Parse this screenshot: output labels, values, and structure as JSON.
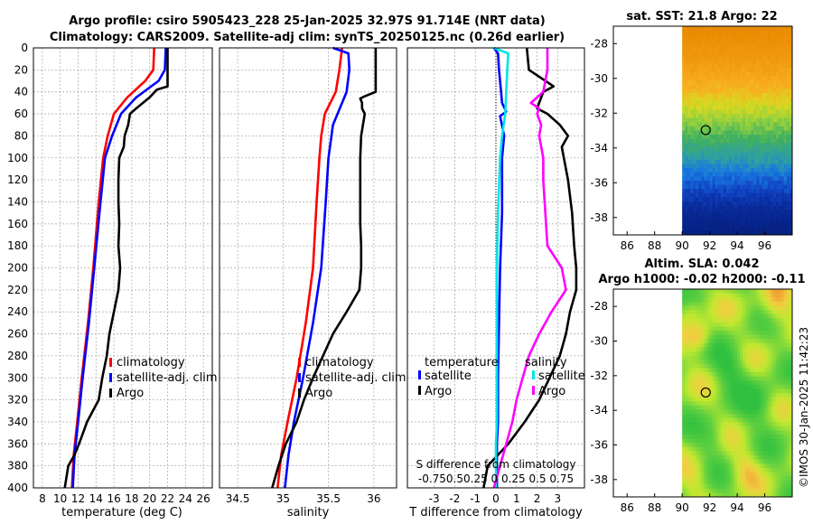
{
  "header": {
    "title_line1": "Argo profile: csiro 5905423_228 25-Jan-2025 32.97S 91.714E (NRT data)",
    "title_line2": "Climatology: CARS2009. Satellite-adj clim: synTS_20250125.nc (0.26d earlier)"
  },
  "footer": {
    "stamp": "©IMOS 30-Jan-2025 11:42:23"
  },
  "colors": {
    "red": "#ff0000",
    "blue": "#0000ff",
    "black": "#000000",
    "cyan": "#00e5e5",
    "magenta": "#ff00ff",
    "grid": "#b0b0b0"
  },
  "chart_data": [
    {
      "id": "temperature",
      "type": "line",
      "xlabel": "temperature (deg C)",
      "ylabel": "",
      "xlim": [
        7,
        27
      ],
      "ylim": [
        0,
        400
      ],
      "y_inverted": true,
      "xticks": [
        8,
        10,
        12,
        14,
        16,
        18,
        20,
        22,
        24,
        26
      ],
      "yticks": [
        0,
        20,
        40,
        60,
        80,
        100,
        120,
        140,
        160,
        180,
        200,
        220,
        240,
        260,
        280,
        300,
        320,
        340,
        360,
        380,
        400
      ],
      "legend": [
        "climatology",
        "satellite-adj. clim",
        "Argo"
      ],
      "legend_position": "lower-right",
      "series": [
        {
          "name": "climatology",
          "color": "red",
          "points": [
            [
              20.5,
              0
            ],
            [
              20.4,
              20
            ],
            [
              19.5,
              30
            ],
            [
              17.5,
              45
            ],
            [
              16,
              60
            ],
            [
              15.3,
              80
            ],
            [
              14.8,
              100
            ],
            [
              14.3,
              140
            ],
            [
              13.7,
              200
            ],
            [
              13.1,
              250
            ],
            [
              12.4,
              300
            ],
            [
              11.9,
              340
            ],
            [
              11.5,
              370
            ],
            [
              11.3,
              400
            ]
          ]
        },
        {
          "name": "satellite-adj. clim",
          "color": "blue",
          "points": [
            [
              21.8,
              0
            ],
            [
              21.7,
              20
            ],
            [
              21,
              30
            ],
            [
              18.5,
              45
            ],
            [
              16.8,
              60
            ],
            [
              15.8,
              80
            ],
            [
              15,
              100
            ],
            [
              14.5,
              140
            ],
            [
              13.8,
              200
            ],
            [
              13.2,
              250
            ],
            [
              12.5,
              300
            ],
            [
              12,
              340
            ],
            [
              11.6,
              370
            ],
            [
              11.4,
              400
            ]
          ]
        },
        {
          "name": "Argo",
          "color": "black",
          "points": [
            [
              22,
              0
            ],
            [
              22,
              35
            ],
            [
              20.8,
              38
            ],
            [
              20,
              45
            ],
            [
              18.5,
              55
            ],
            [
              17.8,
              60
            ],
            [
              17.6,
              70
            ],
            [
              17.2,
              80
            ],
            [
              17.1,
              90
            ],
            [
              16.6,
              100
            ],
            [
              16.5,
              120
            ],
            [
              16.5,
              140
            ],
            [
              16.6,
              160
            ],
            [
              16.5,
              180
            ],
            [
              16.7,
              200
            ],
            [
              16.5,
              220
            ],
            [
              16,
              240
            ],
            [
              15.5,
              260
            ],
            [
              15.2,
              280
            ],
            [
              14.7,
              300
            ],
            [
              14.3,
              320
            ],
            [
              13,
              340
            ],
            [
              12.1,
              360
            ],
            [
              11.6,
              370
            ],
            [
              10.9,
              380
            ],
            [
              10.5,
              400
            ]
          ]
        }
      ]
    },
    {
      "id": "salinity",
      "type": "line",
      "xlabel": "salinity",
      "ylabel": "",
      "xlim": [
        34.3,
        36.25
      ],
      "ylim": [
        0,
        400
      ],
      "y_inverted": true,
      "xticks": [
        34.5,
        35,
        35.5,
        36
      ],
      "xticklabels": [
        "34.5",
        "35",
        "35.5",
        "36"
      ],
      "legend": [
        "climatology",
        "satellite-adj. clim",
        "Argo"
      ],
      "legend_position": "lower-right",
      "series": [
        {
          "name": "climatology",
          "color": "red",
          "points": [
            [
              35.65,
              0
            ],
            [
              35.62,
              20
            ],
            [
              35.58,
              40
            ],
            [
              35.46,
              60
            ],
            [
              35.42,
              80
            ],
            [
              35.4,
              100
            ],
            [
              35.37,
              140
            ],
            [
              35.33,
              200
            ],
            [
              35.25,
              250
            ],
            [
              35.15,
              300
            ],
            [
              35.05,
              340
            ],
            [
              34.98,
              370
            ],
            [
              34.94,
              400
            ]
          ]
        },
        {
          "name": "satellite-adj. clim",
          "color": "blue",
          "points": [
            [
              35.55,
              0
            ],
            [
              35.72,
              5
            ],
            [
              35.73,
              20
            ],
            [
              35.7,
              40
            ],
            [
              35.65,
              50
            ],
            [
              35.55,
              70
            ],
            [
              35.5,
              100
            ],
            [
              35.47,
              140
            ],
            [
              35.42,
              200
            ],
            [
              35.33,
              250
            ],
            [
              35.22,
              300
            ],
            [
              35.12,
              340
            ],
            [
              35.06,
              370
            ],
            [
              35.02,
              400
            ]
          ]
        },
        {
          "name": "Argo",
          "color": "black",
          "points": [
            [
              36.02,
              0
            ],
            [
              36.02,
              40
            ],
            [
              35.9,
              44
            ],
            [
              35.85,
              46
            ],
            [
              35.87,
              50
            ],
            [
              35.87,
              55
            ],
            [
              35.9,
              60
            ],
            [
              35.88,
              70
            ],
            [
              35.86,
              80
            ],
            [
              35.85,
              100
            ],
            [
              35.85,
              130
            ],
            [
              35.85,
              160
            ],
            [
              35.86,
              180
            ],
            [
              35.86,
              200
            ],
            [
              35.84,
              220
            ],
            [
              35.7,
              240
            ],
            [
              35.55,
              260
            ],
            [
              35.44,
              280
            ],
            [
              35.33,
              300
            ],
            [
              35.23,
              320
            ],
            [
              35.15,
              340
            ],
            [
              35.03,
              360
            ],
            [
              34.95,
              380
            ],
            [
              34.88,
              400
            ]
          ]
        }
      ]
    },
    {
      "id": "difference",
      "type": "line",
      "xlabel": "T difference from climatology",
      "ylabel": "",
      "xlim": [
        -4.3,
        4.3
      ],
      "ylim": [
        0,
        400
      ],
      "y_inverted": true,
      "xticks": [
        -3,
        -2,
        -1,
        0,
        1,
        2,
        3
      ],
      "xticklabels": [
        "-3",
        "-2",
        "-1",
        "0",
        "1",
        "2",
        "3"
      ],
      "top_axis_label": "S difference from climatology",
      "top_ticklabels": [
        "-0.75",
        "0.5",
        "0.25",
        "0",
        "0.25",
        "0.5",
        "0.75"
      ],
      "zero_line": "dotted",
      "legend_left_title": "temperature",
      "legend_left": [
        "satellite",
        "Argo"
      ],
      "legend_right_title": "salinity",
      "legend_right": [
        "satellite",
        "Argo"
      ],
      "series": [
        {
          "name": "T satellite",
          "color": "blue",
          "points": [
            [
              -0.1,
              0
            ],
            [
              0.1,
              5
            ],
            [
              0.15,
              20
            ],
            [
              0.25,
              40
            ],
            [
              0.3,
              50
            ],
            [
              0.5,
              58
            ],
            [
              0.2,
              62
            ],
            [
              0.4,
              80
            ],
            [
              0.3,
              100
            ],
            [
              0.3,
              150
            ],
            [
              0.2,
              200
            ],
            [
              0.15,
              250
            ],
            [
              0.1,
              300
            ],
            [
              0.1,
              340
            ],
            [
              0.05,
              360
            ],
            [
              0.05,
              400
            ]
          ]
        },
        {
          "name": "T Argo",
          "color": "black",
          "points": [
            [
              1.5,
              0
            ],
            [
              1.6,
              20
            ],
            [
              2.8,
              35
            ],
            [
              2.3,
              40
            ],
            [
              2,
              55
            ],
            [
              2.5,
              60
            ],
            [
              3.1,
              70
            ],
            [
              3.5,
              80
            ],
            [
              3.2,
              90
            ],
            [
              3.5,
              120
            ],
            [
              3.7,
              150
            ],
            [
              3.8,
              180
            ],
            [
              3.9,
              200
            ],
            [
              3.9,
              220
            ],
            [
              3.6,
              240
            ],
            [
              3.4,
              260
            ],
            [
              3.1,
              280
            ],
            [
              2.6,
              300
            ],
            [
              2.1,
              320
            ],
            [
              1.4,
              340
            ],
            [
              0.6,
              360
            ],
            [
              0.1,
              370
            ],
            [
              -0.4,
              380
            ],
            [
              -0.6,
              400
            ]
          ]
        },
        {
          "name": "S satellite",
          "color": "cyan",
          "points": [
            [
              -0.1,
              0
            ],
            [
              0.6,
              5
            ],
            [
              0.55,
              20
            ],
            [
              0.5,
              40
            ],
            [
              0.45,
              60
            ],
            [
              0.3,
              80
            ],
            [
              0.2,
              100
            ],
            [
              0.1,
              150
            ],
            [
              0.05,
              200
            ],
            [
              0.05,
              250
            ],
            [
              0.05,
              300
            ],
            [
              0.05,
              340
            ],
            [
              0,
              360
            ],
            [
              0,
              400
            ]
          ]
        },
        {
          "name": "S Argo",
          "color": "magenta",
          "points": [
            [
              2.5,
              0
            ],
            [
              2.5,
              20
            ],
            [
              2.3,
              40
            ],
            [
              1.7,
              50
            ],
            [
              2.1,
              55
            ],
            [
              2,
              60
            ],
            [
              2.2,
              70
            ],
            [
              2.1,
              80
            ],
            [
              2.3,
              100
            ],
            [
              2.3,
              120
            ],
            [
              2.4,
              150
            ],
            [
              2.5,
              180
            ],
            [
              3.2,
              200
            ],
            [
              3.4,
              220
            ],
            [
              2.7,
              240
            ],
            [
              2.1,
              260
            ],
            [
              1.6,
              280
            ],
            [
              1.3,
              300
            ],
            [
              1,
              320
            ],
            [
              0.8,
              340
            ],
            [
              0.5,
              360
            ],
            [
              0.2,
              380
            ],
            [
              -0.1,
              400
            ]
          ]
        }
      ]
    },
    {
      "id": "sst_map",
      "type": "heatmap",
      "title": "sat. SST: 21.8 Argo: 22",
      "xlim": [
        85,
        98
      ],
      "ylim": [
        -39,
        -27
      ],
      "xticks": [
        86,
        88,
        90,
        92,
        94,
        96
      ],
      "yticks": [
        -28,
        -30,
        -32,
        -34,
        -36,
        -38
      ],
      "data_xlim": [
        90,
        98
      ],
      "marker": [
        91.714,
        -32.97
      ],
      "value_bands": [
        {
          "to_lat": -27,
          "from_lat": -31,
          "color": "#f0a000"
        },
        {
          "to_lat": -31,
          "from_lat": -33,
          "color": "#c8e020"
        },
        {
          "to_lat": -33,
          "from_lat": -35,
          "color": "#50c060"
        },
        {
          "to_lat": -35,
          "from_lat": -37,
          "color": "#1070d8"
        },
        {
          "to_lat": -37,
          "from_lat": -39,
          "color": "#0830a8"
        }
      ]
    },
    {
      "id": "sla_map",
      "type": "heatmap",
      "title": "Altim. SLA: 0.042",
      "subtitle": "Argo h1000: -0.02 h2000: -0.11",
      "xlim": [
        85,
        98
      ],
      "ylim": [
        -39,
        -27
      ],
      "xticks": [
        86,
        88,
        90,
        92,
        94,
        96
      ],
      "yticks": [
        -28,
        -30,
        -32,
        -34,
        -36,
        -38
      ],
      "data_xlim": [
        90,
        98
      ],
      "marker": [
        91.714,
        -32.97
      ],
      "base_color": "#a8e830"
    }
  ]
}
